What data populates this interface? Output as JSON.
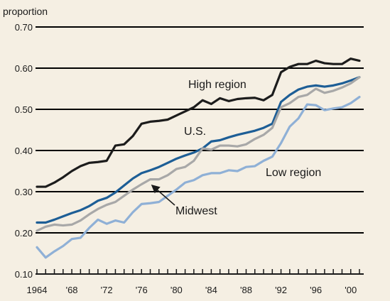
{
  "chart_data": {
    "type": "line",
    "ylabel": "proportion",
    "ylim": [
      0.1,
      0.7
    ],
    "yticks": [
      "0.10",
      "0.20",
      "0.30",
      "0.40",
      "0.50",
      "0.60",
      "0.70"
    ],
    "xlim": [
      1964,
      2001
    ],
    "xticks": [
      {
        "year": 1964,
        "label": "1964"
      },
      {
        "year": 1968,
        "label": "'68"
      },
      {
        "year": 1972,
        "label": "'72"
      },
      {
        "year": 1976,
        "label": "'76"
      },
      {
        "year": 1980,
        "label": "'80"
      },
      {
        "year": 1984,
        "label": "'84"
      },
      {
        "year": 1988,
        "label": "'88"
      },
      {
        "year": 1992,
        "label": "'92"
      },
      {
        "year": 1996,
        "label": "'96"
      },
      {
        "year": 2000,
        "label": "'00"
      }
    ],
    "grid": true,
    "x": [
      1964,
      1965,
      1966,
      1967,
      1968,
      1969,
      1970,
      1971,
      1972,
      1973,
      1974,
      1975,
      1976,
      1977,
      1978,
      1979,
      1980,
      1981,
      1982,
      1983,
      1984,
      1985,
      1986,
      1987,
      1988,
      1989,
      1990,
      1991,
      1992,
      1993,
      1994,
      1995,
      1996,
      1997,
      1998,
      1999,
      2000,
      2001
    ],
    "series": [
      {
        "name": "High region",
        "color": "#1c1c1c",
        "values": [
          0.312,
          0.312,
          0.322,
          0.335,
          0.35,
          0.362,
          0.37,
          0.372,
          0.375,
          0.412,
          0.415,
          0.435,
          0.465,
          0.47,
          0.472,
          0.475,
          0.485,
          0.495,
          0.505,
          0.522,
          0.513,
          0.527,
          0.52,
          0.525,
          0.527,
          0.528,
          0.522,
          0.535,
          0.59,
          0.603,
          0.61,
          0.61,
          0.618,
          0.612,
          0.61,
          0.61,
          0.623,
          0.618
        ]
      },
      {
        "name": "U.S.",
        "color": "#1d5e96",
        "values": [
          0.225,
          0.225,
          0.232,
          0.24,
          0.248,
          0.255,
          0.265,
          0.278,
          0.285,
          0.298,
          0.315,
          0.332,
          0.345,
          0.352,
          0.36,
          0.37,
          0.38,
          0.388,
          0.395,
          0.405,
          0.422,
          0.425,
          0.432,
          0.438,
          0.443,
          0.448,
          0.455,
          0.465,
          0.518,
          0.535,
          0.548,
          0.555,
          0.558,
          0.555,
          0.558,
          0.563,
          0.57,
          0.578
        ]
      },
      {
        "name": "Midwest",
        "color": "#a8a8a8",
        "values": [
          0.205,
          0.215,
          0.22,
          0.218,
          0.22,
          0.23,
          0.245,
          0.258,
          0.268,
          0.275,
          0.29,
          0.305,
          0.318,
          0.33,
          0.33,
          0.34,
          0.355,
          0.36,
          0.375,
          0.405,
          0.402,
          0.412,
          0.412,
          0.41,
          0.415,
          0.428,
          0.438,
          0.455,
          0.505,
          0.515,
          0.53,
          0.535,
          0.55,
          0.54,
          0.545,
          0.553,
          0.563,
          0.578
        ]
      },
      {
        "name": "Low region",
        "color": "#8fb0d6",
        "values": [
          0.165,
          0.14,
          0.155,
          0.168,
          0.185,
          0.188,
          0.212,
          0.232,
          0.222,
          0.23,
          0.225,
          0.25,
          0.27,
          0.272,
          0.275,
          0.29,
          0.305,
          0.322,
          0.328,
          0.34,
          0.345,
          0.345,
          0.352,
          0.35,
          0.36,
          0.362,
          0.375,
          0.385,
          0.418,
          0.458,
          0.478,
          0.512,
          0.51,
          0.498,
          0.502,
          0.505,
          0.515,
          0.53
        ]
      }
    ],
    "annotations": [
      {
        "text": "High region"
      },
      {
        "text": "U.S."
      },
      {
        "text": "Low region"
      },
      {
        "text": "Midwest"
      }
    ]
  }
}
